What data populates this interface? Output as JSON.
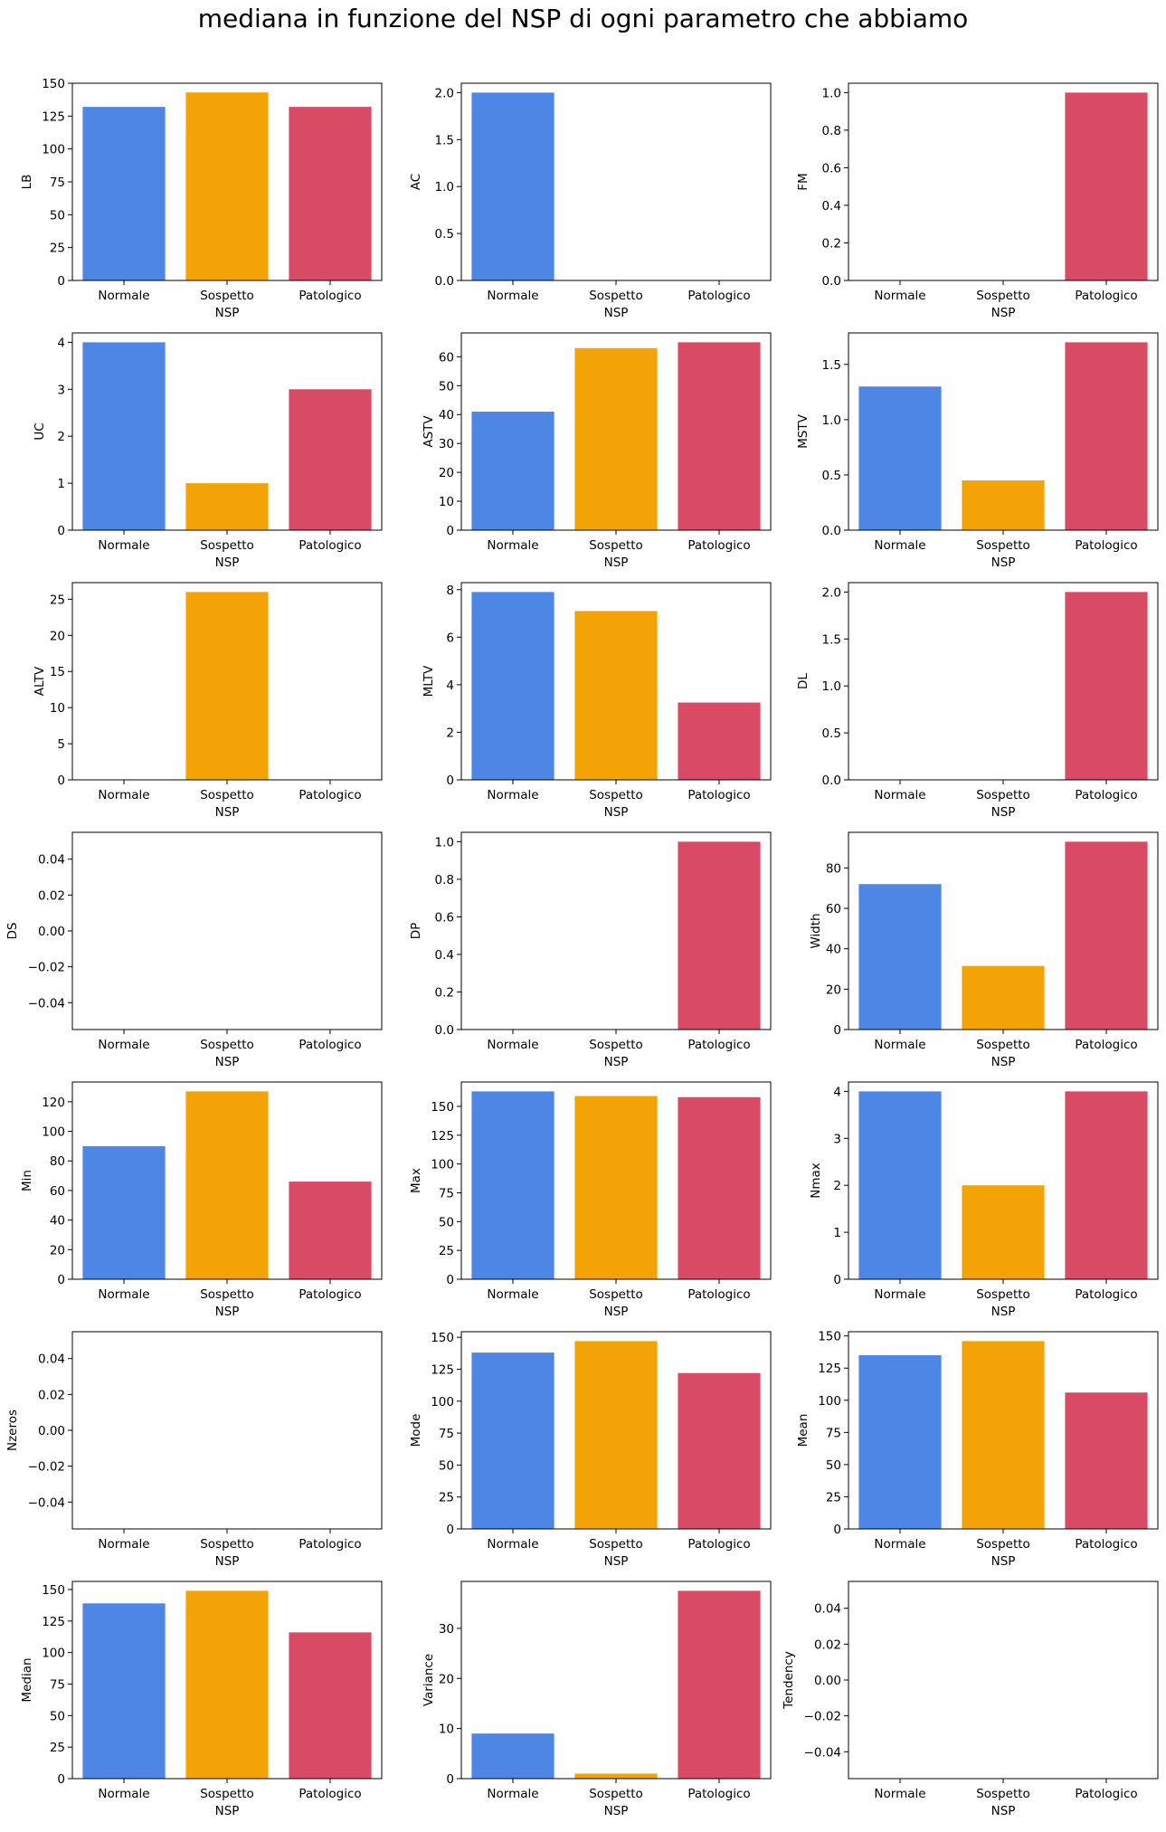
{
  "suptitle": "mediana in funzione del NSP di ogni parametro che abbiamo",
  "colors": {
    "Normale": "#4e86e6",
    "Sospetto": "#f4a306",
    "Patologico": "#d94a64"
  },
  "chart_data": [
    {
      "type": "bar",
      "xlabel": "NSP",
      "ylabel": "LB",
      "categories": [
        "Normale",
        "Sospetto",
        "Patologico"
      ],
      "values": [
        132,
        143,
        132
      ],
      "ylim": [
        0,
        150
      ],
      "yticks": [
        "0",
        "25",
        "50",
        "75",
        "100",
        "125",
        "150"
      ],
      "ytick_values": [
        0,
        25,
        50,
        75,
        100,
        125,
        150
      ]
    },
    {
      "type": "bar",
      "xlabel": "NSP",
      "ylabel": "AC",
      "categories": [
        "Normale",
        "Sospetto",
        "Patologico"
      ],
      "values": [
        2,
        0,
        0
      ],
      "ylim": [
        0,
        2.1
      ],
      "yticks": [
        "0.0",
        "0.5",
        "1.0",
        "1.5",
        "2.0"
      ],
      "ytick_values": [
        0,
        0.5,
        1,
        1.5,
        2
      ]
    },
    {
      "type": "bar",
      "xlabel": "NSP",
      "ylabel": "FM",
      "categories": [
        "Normale",
        "Sospetto",
        "Patologico"
      ],
      "values": [
        0,
        0,
        1
      ],
      "ylim": [
        0,
        1.05
      ],
      "yticks": [
        "0.0",
        "0.2",
        "0.4",
        "0.6",
        "0.8",
        "1.0"
      ],
      "ytick_values": [
        0,
        0.2,
        0.4,
        0.6,
        0.8,
        1
      ]
    },
    {
      "type": "bar",
      "xlabel": "NSP",
      "ylabel": "UC",
      "categories": [
        "Normale",
        "Sospetto",
        "Patologico"
      ],
      "values": [
        4,
        1,
        3
      ],
      "ylim": [
        0,
        4.2
      ],
      "yticks": [
        "0",
        "1",
        "2",
        "3",
        "4"
      ],
      "ytick_values": [
        0,
        1,
        2,
        3,
        4
      ]
    },
    {
      "type": "bar",
      "xlabel": "NSP",
      "ylabel": "ASTV",
      "categories": [
        "Normale",
        "Sospetto",
        "Patologico"
      ],
      "values": [
        41,
        63,
        65
      ],
      "ylim": [
        0,
        68.25
      ],
      "yticks": [
        "0",
        "10",
        "20",
        "30",
        "40",
        "50",
        "60"
      ],
      "ytick_values": [
        0,
        10,
        20,
        30,
        40,
        50,
        60
      ]
    },
    {
      "type": "bar",
      "xlabel": "NSP",
      "ylabel": "MSTV",
      "categories": [
        "Normale",
        "Sospetto",
        "Patologico"
      ],
      "values": [
        1.3,
        0.45,
        1.7
      ],
      "ylim": [
        0,
        1.785
      ],
      "yticks": [
        "0.0",
        "0.5",
        "1.0",
        "1.5"
      ],
      "ytick_values": [
        0,
        0.5,
        1,
        1.5
      ]
    },
    {
      "type": "bar",
      "xlabel": "NSP",
      "ylabel": "ALTV",
      "categories": [
        "Normale",
        "Sospetto",
        "Patologico"
      ],
      "values": [
        0,
        26,
        0
      ],
      "ylim": [
        0,
        27.3
      ],
      "yticks": [
        "0",
        "5",
        "10",
        "15",
        "20",
        "25"
      ],
      "ytick_values": [
        0,
        5,
        10,
        15,
        20,
        25
      ]
    },
    {
      "type": "bar",
      "xlabel": "NSP",
      "ylabel": "MLTV",
      "categories": [
        "Normale",
        "Sospetto",
        "Patologico"
      ],
      "values": [
        7.9,
        7.1,
        3.25
      ],
      "ylim": [
        0,
        8.295
      ],
      "yticks": [
        "0",
        "2",
        "4",
        "6",
        "8"
      ],
      "ytick_values": [
        0,
        2,
        4,
        6,
        8
      ]
    },
    {
      "type": "bar",
      "xlabel": "NSP",
      "ylabel": "DL",
      "categories": [
        "Normale",
        "Sospetto",
        "Patologico"
      ],
      "values": [
        0,
        0,
        2
      ],
      "ylim": [
        0,
        2.1
      ],
      "yticks": [
        "0.0",
        "0.5",
        "1.0",
        "1.5",
        "2.0"
      ],
      "ytick_values": [
        0,
        0.5,
        1,
        1.5,
        2
      ]
    },
    {
      "type": "bar",
      "xlabel": "NSP",
      "ylabel": "DS",
      "categories": [
        "Normale",
        "Sospetto",
        "Patologico"
      ],
      "values": [
        0,
        0,
        0
      ],
      "ylim": [
        -0.055,
        0.055
      ],
      "yticks": [
        "−0.04",
        "−0.02",
        "0.00",
        "0.02",
        "0.04"
      ],
      "ytick_values": [
        -0.04,
        -0.02,
        0,
        0.02,
        0.04
      ]
    },
    {
      "type": "bar",
      "xlabel": "NSP",
      "ylabel": "DP",
      "categories": [
        "Normale",
        "Sospetto",
        "Patologico"
      ],
      "values": [
        0,
        0,
        1
      ],
      "ylim": [
        0,
        1.05
      ],
      "yticks": [
        "0.0",
        "0.2",
        "0.4",
        "0.6",
        "0.8",
        "1.0"
      ],
      "ytick_values": [
        0,
        0.2,
        0.4,
        0.6,
        0.8,
        1
      ]
    },
    {
      "type": "bar",
      "xlabel": "NSP",
      "ylabel": "Width",
      "categories": [
        "Normale",
        "Sospetto",
        "Patologico"
      ],
      "values": [
        72,
        31.5,
        93
      ],
      "ylim": [
        0,
        97.65
      ],
      "yticks": [
        "0",
        "20",
        "40",
        "60",
        "80"
      ],
      "ytick_values": [
        0,
        20,
        40,
        60,
        80
      ]
    },
    {
      "type": "bar",
      "xlabel": "NSP",
      "ylabel": "Min",
      "categories": [
        "Normale",
        "Sospetto",
        "Patologico"
      ],
      "values": [
        90,
        127,
        66
      ],
      "ylim": [
        0,
        133.35
      ],
      "yticks": [
        "0",
        "20",
        "40",
        "60",
        "80",
        "100",
        "120"
      ],
      "ytick_values": [
        0,
        20,
        40,
        60,
        80,
        100,
        120
      ]
    },
    {
      "type": "bar",
      "xlabel": "NSP",
      "ylabel": "Max",
      "categories": [
        "Normale",
        "Sospetto",
        "Patologico"
      ],
      "values": [
        163,
        159,
        158
      ],
      "ylim": [
        0,
        171.15
      ],
      "yticks": [
        "0",
        "25",
        "50",
        "75",
        "100",
        "125",
        "150"
      ],
      "ytick_values": [
        0,
        25,
        50,
        75,
        100,
        125,
        150
      ]
    },
    {
      "type": "bar",
      "xlabel": "NSP",
      "ylabel": "Nmax",
      "categories": [
        "Normale",
        "Sospetto",
        "Patologico"
      ],
      "values": [
        4,
        2,
        4
      ],
      "ylim": [
        0,
        4.2
      ],
      "yticks": [
        "0",
        "1",
        "2",
        "3",
        "4"
      ],
      "ytick_values": [
        0,
        1,
        2,
        3,
        4
      ]
    },
    {
      "type": "bar",
      "xlabel": "NSP",
      "ylabel": "Nzeros",
      "categories": [
        "Normale",
        "Sospetto",
        "Patologico"
      ],
      "values": [
        0,
        0,
        0
      ],
      "ylim": [
        -0.055,
        0.055
      ],
      "yticks": [
        "−0.04",
        "−0.02",
        "0.00",
        "0.02",
        "0.04"
      ],
      "ytick_values": [
        -0.04,
        -0.02,
        0,
        0.02,
        0.04
      ]
    },
    {
      "type": "bar",
      "xlabel": "NSP",
      "ylabel": "Mode",
      "categories": [
        "Normale",
        "Sospetto",
        "Patologico"
      ],
      "values": [
        138,
        147,
        122
      ],
      "ylim": [
        0,
        154.35
      ],
      "yticks": [
        "0",
        "25",
        "50",
        "75",
        "100",
        "125",
        "150"
      ],
      "ytick_values": [
        0,
        25,
        50,
        75,
        100,
        125,
        150
      ]
    },
    {
      "type": "bar",
      "xlabel": "NSP",
      "ylabel": "Mean",
      "categories": [
        "Normale",
        "Sospetto",
        "Patologico"
      ],
      "values": [
        135,
        146,
        106
      ],
      "ylim": [
        0,
        153.3
      ],
      "yticks": [
        "0",
        "25",
        "50",
        "75",
        "100",
        "125",
        "150"
      ],
      "ytick_values": [
        0,
        25,
        50,
        75,
        100,
        125,
        150
      ]
    },
    {
      "type": "bar",
      "xlabel": "NSP",
      "ylabel": "Median",
      "categories": [
        "Normale",
        "Sospetto",
        "Patologico"
      ],
      "values": [
        139,
        149,
        116
      ],
      "ylim": [
        0,
        156.45
      ],
      "yticks": [
        "0",
        "25",
        "50",
        "75",
        "100",
        "125",
        "150"
      ],
      "ytick_values": [
        0,
        25,
        50,
        75,
        100,
        125,
        150
      ]
    },
    {
      "type": "bar",
      "xlabel": "NSP",
      "ylabel": "Variance",
      "categories": [
        "Normale",
        "Sospetto",
        "Patologico"
      ],
      "values": [
        9,
        1,
        37.5
      ],
      "ylim": [
        0,
        39.375
      ],
      "yticks": [
        "0",
        "10",
        "20",
        "30"
      ],
      "ytick_values": [
        0,
        10,
        20,
        30
      ]
    },
    {
      "type": "bar",
      "xlabel": "NSP",
      "ylabel": "Tendency",
      "categories": [
        "Normale",
        "Sospetto",
        "Patologico"
      ],
      "values": [
        0,
        0,
        0
      ],
      "ylim": [
        -0.055,
        0.055
      ],
      "yticks": [
        "−0.04",
        "−0.02",
        "0.00",
        "0.02",
        "0.04"
      ],
      "ytick_values": [
        -0.04,
        -0.02,
        0,
        0.02,
        0.04
      ]
    }
  ]
}
